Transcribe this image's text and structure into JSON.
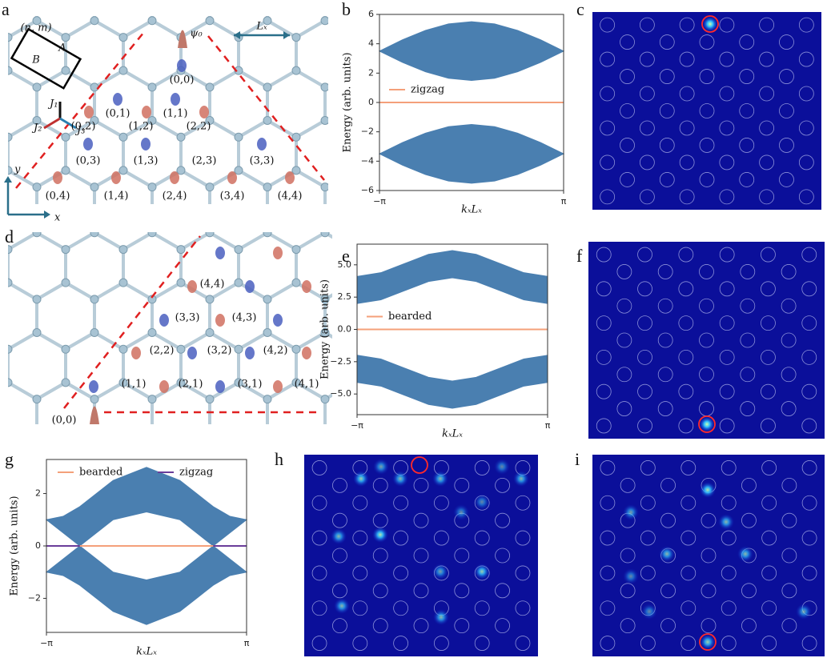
{
  "panel_labels": [
    "a",
    "b",
    "c",
    "d",
    "e",
    "f",
    "g",
    "h",
    "i"
  ],
  "lattice_a": {
    "cell_label": "(n, m)",
    "sublattice_a": "A",
    "sublattice_b": "B",
    "state": "ψ₀",
    "period": "Lₓ",
    "couplings": [
      "J₁",
      "J₂",
      "J₃"
    ],
    "axes": [
      "y",
      "x"
    ],
    "sites": [
      "(0,0)",
      "(0,1)",
      "(1,1)",
      "(0,2)",
      "(1,2)",
      "(2,2)",
      "(0,3)",
      "(1,3)",
      "(2,3)",
      "(3,3)",
      "(0,4)",
      "(1,4)",
      "(2,4)",
      "(3,4)",
      "(4,4)"
    ]
  },
  "lattice_d": {
    "sites": [
      "(4,4)",
      "(3,3)",
      "(4,3)",
      "(2,2)",
      "(3,2)",
      "(4,2)",
      "(1,1)",
      "(2,1)",
      "(3,1)",
      "(4,1)",
      "(0,0)"
    ]
  },
  "chart_data": [
    {
      "type": "band",
      "ylabel": "Energy (arb. units)",
      "xlabel": "kₓLₓ",
      "x": [
        -3.1416,
        -2.3562,
        -1.5708,
        -0.7854,
        0,
        0.7854,
        1.5708,
        2.3562,
        3.1416
      ],
      "xlim": [
        -3.1416,
        3.1416
      ],
      "xticks": [
        {
          "value": -3.1416,
          "label": "−π"
        },
        {
          "value": 3.1416,
          "label": "π"
        }
      ],
      "ylim": [
        -6,
        6
      ],
      "yticks": [
        {
          "value": -6,
          "label": "−6"
        },
        {
          "value": -4,
          "label": "−4"
        },
        {
          "value": -2,
          "label": "−2"
        },
        0,
        2,
        4,
        6
      ],
      "band_color": "#4a7fb0",
      "bands": [
        {
          "upper": [
            3.5,
            4.27,
            4.91,
            5.35,
            5.5,
            5.35,
            4.91,
            4.27,
            3.5
          ],
          "lower": [
            3.5,
            2.73,
            2.09,
            1.65,
            1.5,
            1.65,
            2.09,
            2.73,
            3.5
          ]
        },
        {
          "upper": [
            -3.5,
            -2.73,
            -2.09,
            -1.65,
            -1.5,
            -1.65,
            -2.09,
            -2.73,
            -3.5
          ],
          "lower": [
            -3.5,
            -4.27,
            -4.91,
            -5.35,
            -5.5,
            -5.35,
            -4.91,
            -4.27,
            -3.5
          ]
        }
      ],
      "series": [
        {
          "name": "zigzag",
          "color": "#f4a07a",
          "values": [
            0,
            0,
            0,
            0,
            0,
            0,
            0,
            0,
            0
          ]
        }
      ],
      "legend": "center left"
    },
    {
      "type": "band",
      "ylabel": "Energy (arb. units)",
      "xlabel": "kₓLₓ",
      "x": [
        -3.1416,
        -2.3562,
        -1.5708,
        -0.7854,
        0,
        0.7854,
        1.5708,
        2.3562,
        3.1416
      ],
      "xlim": [
        -3.1416,
        3.1416
      ],
      "xticks": [
        {
          "value": -3.1416,
          "label": "−π"
        },
        {
          "value": 3.1416,
          "label": "π"
        }
      ],
      "ylim": [
        -6.6,
        6.6
      ],
      "yticks": [
        {
          "value": -5,
          "label": "−5.0"
        },
        {
          "value": -2.5,
          "label": "−2.5"
        },
        {
          "value": 0,
          "label": "0.0"
        },
        {
          "value": 2.5,
          "label": "2.5"
        },
        {
          "value": 5,
          "label": "5.0"
        }
      ],
      "band_color": "#4a7fb0",
      "bands": [
        {
          "upper": [
            4.1,
            4.39,
            5.1,
            5.81,
            6.1,
            5.81,
            5.1,
            4.39,
            4.1
          ],
          "lower": [
            2,
            2.29,
            3,
            3.71,
            4,
            3.71,
            3,
            2.29,
            2
          ]
        },
        {
          "upper": [
            -2,
            -2.29,
            -3,
            -3.71,
            -4,
            -3.71,
            -3,
            -2.29,
            -2
          ],
          "lower": [
            -4.1,
            -4.39,
            -5.1,
            -5.81,
            -6.1,
            -5.81,
            -5.1,
            -4.39,
            -4.1
          ]
        }
      ],
      "series": [
        {
          "name": "bearded",
          "color": "#f4a07a",
          "values": [
            0,
            0,
            0,
            0,
            0,
            0,
            0,
            0,
            0
          ]
        }
      ],
      "legend": "center left"
    },
    {
      "type": "band",
      "ylabel": "Energy (arb. units)",
      "xlabel": "kₓLₓ",
      "x": [
        -3.1416,
        -2.618,
        -2.0944,
        -1.5708,
        -1.0472,
        0,
        1.0472,
        1.5708,
        2.0944,
        2.618,
        3.1416
      ],
      "xlim": [
        -3.1416,
        3.1416
      ],
      "xticks": [
        {
          "value": -3.1416,
          "label": "−π"
        },
        {
          "value": 3.1416,
          "label": "π"
        }
      ],
      "ylim": [
        -3.3,
        3.3
      ],
      "yticks": [
        {
          "value": -2,
          "label": "−2"
        },
        0,
        2
      ],
      "band_color": "#4a7fb0",
      "bands": [
        {
          "upper": [
            1,
            1.13,
            1.5,
            2,
            2.5,
            3,
            2.5,
            2,
            1.5,
            1.13,
            1
          ],
          "lower": [
            1,
            0.5,
            0,
            0.5,
            1,
            1.3,
            1,
            0.5,
            0,
            0.5,
            1
          ]
        },
        {
          "upper": [
            -1,
            -0.5,
            0,
            -0.5,
            -1,
            -1.3,
            -1,
            -0.5,
            0,
            -0.5,
            -1
          ],
          "lower": [
            -1,
            -1.13,
            -1.5,
            -2,
            -2.5,
            -3,
            -2.5,
            -2,
            -1.5,
            -1.13,
            -1
          ]
        }
      ],
      "series": [
        {
          "name": "bearded",
          "color": "#f4a07a",
          "values": [
            null,
            null,
            0,
            0,
            0,
            0,
            0,
            0,
            0,
            null,
            null
          ]
        },
        {
          "name": "zigzag",
          "color": "#6a3d9a",
          "values": [
            0,
            0,
            0,
            null,
            null,
            null,
            null,
            null,
            0,
            0,
            0
          ]
        }
      ],
      "legend": "upper center"
    }
  ]
}
